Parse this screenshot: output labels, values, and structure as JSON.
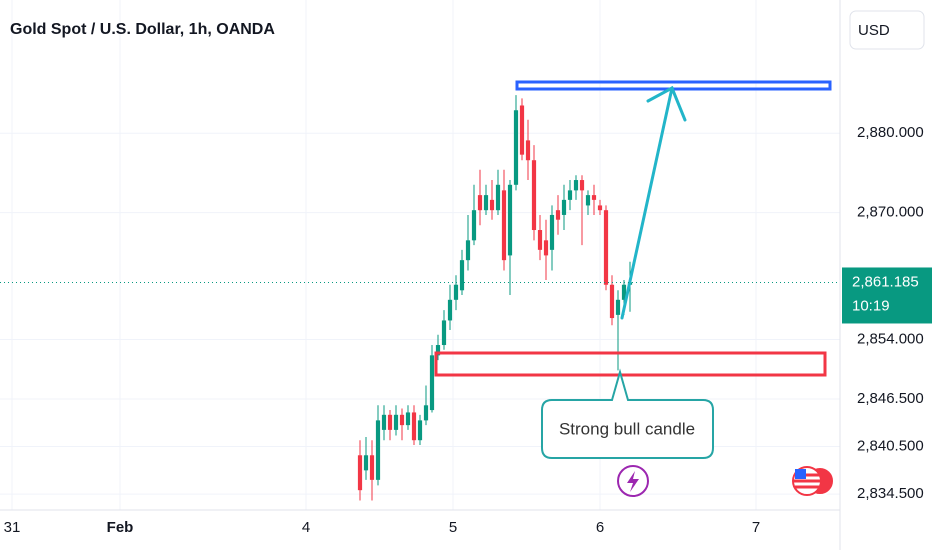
{
  "chart_data": {
    "type": "candlestick",
    "title": "Gold Spot / U.S. Dollar, 1h, OANDA",
    "currency": "USD",
    "up_color": "#089981",
    "down_color": "#f23645",
    "grid": true,
    "x": [
      60,
      61,
      62,
      63,
      64,
      65,
      66,
      67,
      68,
      69,
      70,
      71,
      72,
      73,
      74,
      75,
      76,
      77,
      78,
      79,
      80,
      81,
      82,
      83,
      84,
      85,
      86,
      87,
      88,
      89,
      90,
      91,
      92,
      93,
      94,
      95,
      96,
      97,
      98,
      99,
      100,
      101,
      102,
      103,
      104,
      105
    ],
    "open": [
      2839.4,
      2837.5,
      2839.4,
      2836.3,
      2842.6,
      2844.5,
      2842.6,
      2844.5,
      2843.2,
      2844.8,
      2841.3,
      2843.8,
      2845.1,
      2852.0,
      2853.3,
      2856.4,
      2859.0,
      2860.2,
      2864.0,
      2866.5,
      2872.2,
      2870.3,
      2871.6,
      2870.3,
      2872.8,
      2864.6,
      2873.5,
      2883.5,
      2879.1,
      2876.6,
      2867.8,
      2866.5,
      2865.3,
      2870.3,
      2869.7,
      2871.6,
      2872.8,
      2874.1,
      2870.9,
      2872.2,
      2870.9,
      2870.3,
      2860.9,
      2857.1,
      2859.0,
      2860.9
    ],
    "high": [
      2841.3,
      2841.7,
      2841.3,
      2845.7,
      2845.7,
      2845.1,
      2845.7,
      2845.3,
      2845.7,
      2845.7,
      2844.5,
      2848.2,
      2853.3,
      2854.6,
      2857.7,
      2860.9,
      2862.1,
      2865.3,
      2869.7,
      2873.5,
      2875.4,
      2873.5,
      2874.1,
      2875.4,
      2875.4,
      2874.1,
      2884.8,
      2884.4,
      2881.7,
      2878.5,
      2869.7,
      2869.1,
      2870.9,
      2872.2,
      2873.5,
      2874.1,
      2874.7,
      2874.7,
      2872.8,
      2873.5,
      2871.6,
      2870.9,
      2862.1,
      2860.2,
      2861.5,
      2863.8
    ],
    "low": [
      2833.7,
      2836.3,
      2833.7,
      2835.6,
      2841.3,
      2841.3,
      2841.9,
      2841.3,
      2842.6,
      2840.7,
      2840.7,
      2843.2,
      2844.8,
      2851.4,
      2852.7,
      2855.2,
      2857.7,
      2859.6,
      2862.7,
      2865.9,
      2868.4,
      2869.7,
      2869.1,
      2869.7,
      2862.7,
      2859.6,
      2872.8,
      2876.6,
      2874.1,
      2866.5,
      2864.0,
      2861.5,
      2862.7,
      2867.2,
      2867.8,
      2870.3,
      2871.6,
      2865.9,
      2869.7,
      2869.7,
      2869.7,
      2860.2,
      2855.8,
      2850.1,
      2857.1,
      2857.5
    ],
    "close": [
      2835.0,
      2839.4,
      2836.3,
      2843.8,
      2844.5,
      2842.6,
      2844.5,
      2843.2,
      2844.8,
      2841.3,
      2843.8,
      2845.7,
      2852.0,
      2853.3,
      2856.4,
      2859.0,
      2860.9,
      2864.0,
      2866.5,
      2870.3,
      2870.3,
      2872.2,
      2870.3,
      2873.5,
      2864.0,
      2873.5,
      2882.9,
      2877.3,
      2876.6,
      2867.8,
      2865.3,
      2864.6,
      2869.7,
      2869.1,
      2871.6,
      2872.8,
      2874.1,
      2872.8,
      2872.2,
      2871.6,
      2870.3,
      2860.9,
      2856.7,
      2859.0,
      2860.9,
      2861.2
    ],
    "xlim": [
      0,
      140
    ],
    "ylim": [
      2832.5,
      2896.8
    ],
    "xticks": [
      {
        "value": 2,
        "label": "31"
      },
      {
        "value": 20,
        "label": "Feb"
      },
      {
        "value": 51,
        "label": "4"
      },
      {
        "value": 75.5,
        "label": "5"
      },
      {
        "value": 100,
        "label": "6"
      },
      {
        "value": 126,
        "label": "7"
      }
    ],
    "yticks": [
      {
        "value": 2880,
        "label": "2,880.000"
      },
      {
        "value": 2870,
        "label": "2,870.000"
      },
      {
        "value": 2854,
        "label": "2,854.000"
      },
      {
        "value": 2846.5,
        "label": "2,846.500"
      },
      {
        "value": 2840.5,
        "label": "2,840.500"
      },
      {
        "value": 2834.5,
        "label": "2,834.500"
      }
    ],
    "last_price": {
      "value": 2861.185,
      "label": "2,861.185"
    },
    "countdown": "10:19",
    "annotation": "Strong bull candle"
  }
}
